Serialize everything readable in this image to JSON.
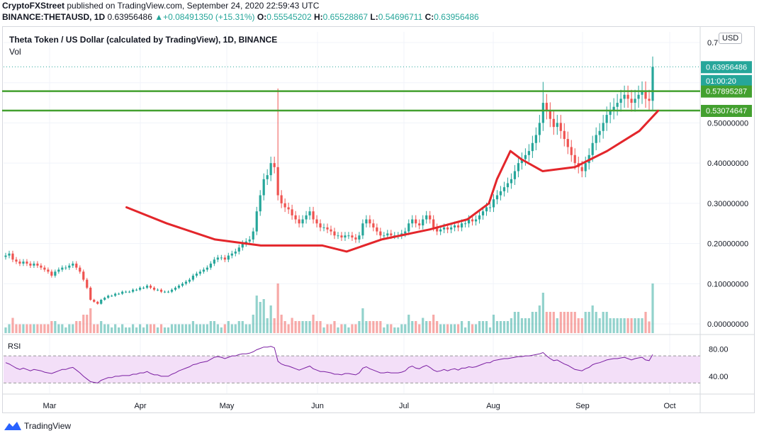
{
  "header": {
    "line1_brand": "CryptoFXStreet",
    "line1_rest": " published on TradingView.com, September 24, 2020 22:59:43 UTC",
    "symbol": "BINANCE:THETAUSD, 1D",
    "close_val": "0.63956486",
    "change": "+0.08491350 (+15.31%)",
    "o_label": "O:",
    "o_val": "0.55545202",
    "h_label": "H:",
    "h_val": "0.65528867",
    "l_label": "L:",
    "l_val": "0.54696711",
    "c_label": "C:",
    "c_val": "0.63956486"
  },
  "chart_title": "Theta Token / US Dollar (calculated by TradingView), 1D, BINANCE",
  "vol_label": "Vol",
  "rsi_label": "RSI",
  "currency_button": "USD",
  "branding": "TradingView",
  "colors": {
    "up": "#26a69a",
    "down": "#ef5350",
    "level": "#43a02f",
    "annotation": "#e3262b",
    "rsi": "#7b1fa2",
    "rsi_band": "#f3dff8"
  },
  "chart_data": {
    "type": "candlestick",
    "price_axis": {
      "ticks": [
        "0.00000000",
        "0.10000000",
        "0.20000000",
        "0.30000000",
        "0.40000000",
        "0.50000000"
      ],
      "partial_top": "0.7",
      "ylim": [
        0,
        0.7
      ]
    },
    "x_tick_labels": [
      "Mar",
      "Apr",
      "May",
      "Jun",
      "Jul",
      "Aug",
      "Sep",
      "Oct"
    ],
    "price_labels": [
      {
        "text": "0.63956486",
        "price": 0.63956486
      },
      {
        "text": "01:00:20",
        "price": 0.605
      },
      {
        "text": "0.57895287",
        "price": 0.57895287
      },
      {
        "text": "0.53074647",
        "price": 0.53074647
      }
    ],
    "horizontal_levels": [
      0.57895287,
      0.53074647
    ],
    "last_price": 0.63956486,
    "rsi": {
      "ticks": [
        "80.00",
        "40.00"
      ],
      "band": [
        30,
        70
      ],
      "ylim": [
        20,
        90
      ]
    },
    "closes": [
      0.17,
      0.175,
      0.16,
      0.155,
      0.15,
      0.155,
      0.15,
      0.145,
      0.15,
      0.145,
      0.14,
      0.135,
      0.13,
      0.12,
      0.13,
      0.135,
      0.14,
      0.14,
      0.145,
      0.15,
      0.14,
      0.13,
      0.11,
      0.09,
      0.06,
      0.055,
      0.05,
      0.06,
      0.065,
      0.07,
      0.07,
      0.075,
      0.075,
      0.08,
      0.08,
      0.08,
      0.085,
      0.085,
      0.09,
      0.09,
      0.095,
      0.09,
      0.085,
      0.085,
      0.08,
      0.08,
      0.08,
      0.085,
      0.09,
      0.095,
      0.1,
      0.105,
      0.11,
      0.12,
      0.125,
      0.13,
      0.135,
      0.14,
      0.15,
      0.16,
      0.165,
      0.165,
      0.16,
      0.17,
      0.175,
      0.18,
      0.19,
      0.2,
      0.205,
      0.21,
      0.23,
      0.28,
      0.32,
      0.36,
      0.37,
      0.4,
      0.39,
      0.32,
      0.3,
      0.29,
      0.285,
      0.27,
      0.26,
      0.25,
      0.26,
      0.27,
      0.28,
      0.26,
      0.25,
      0.24,
      0.24,
      0.235,
      0.23,
      0.22,
      0.22,
      0.215,
      0.22,
      0.22,
      0.215,
      0.21,
      0.22,
      0.25,
      0.26,
      0.25,
      0.24,
      0.23,
      0.22,
      0.22,
      0.225,
      0.22,
      0.22,
      0.22,
      0.225,
      0.23,
      0.25,
      0.26,
      0.25,
      0.245,
      0.26,
      0.27,
      0.26,
      0.24,
      0.23,
      0.235,
      0.24,
      0.235,
      0.24,
      0.245,
      0.24,
      0.25,
      0.25,
      0.26,
      0.255,
      0.26,
      0.27,
      0.28,
      0.29,
      0.29,
      0.31,
      0.32,
      0.33,
      0.34,
      0.35,
      0.36,
      0.38,
      0.4,
      0.41,
      0.42,
      0.43,
      0.45,
      0.47,
      0.5,
      0.55,
      0.53,
      0.51,
      0.49,
      0.5,
      0.48,
      0.46,
      0.44,
      0.42,
      0.4,
      0.39,
      0.38,
      0.4,
      0.42,
      0.45,
      0.47,
      0.48,
      0.5,
      0.52,
      0.53,
      0.54,
      0.55,
      0.56,
      0.57,
      0.56,
      0.55,
      0.56,
      0.57,
      0.58,
      0.56,
      0.555,
      0.63956486
    ],
    "rsi_values": [
      60,
      58,
      55,
      52,
      50,
      52,
      50,
      48,
      50,
      49,
      48,
      46,
      45,
      44,
      46,
      48,
      50,
      50,
      52,
      53,
      49,
      45,
      40,
      36,
      32,
      31,
      30,
      34,
      36,
      38,
      38,
      40,
      40,
      41,
      41,
      41,
      43,
      43,
      45,
      45,
      47,
      44,
      42,
      42,
      40,
      40,
      40,
      43,
      45,
      48,
      50,
      52,
      54,
      57,
      58,
      60,
      61,
      62,
      65,
      68,
      69,
      68,
      66,
      68,
      70,
      70,
      72,
      73,
      73,
      74,
      76,
      79,
      81,
      83,
      83,
      84,
      82,
      62,
      58,
      56,
      55,
      53,
      51,
      49,
      51,
      53,
      55,
      51,
      49,
      47,
      47,
      46,
      45,
      43,
      43,
      42,
      44,
      44,
      43,
      42,
      45,
      52,
      54,
      51,
      49,
      47,
      45,
      45,
      46,
      45,
      45,
      45,
      46,
      48,
      53,
      55,
      52,
      51,
      54,
      56,
      53,
      49,
      47,
      48,
      50,
      48,
      50,
      51,
      49,
      52,
      52,
      54,
      53,
      54,
      56,
      58,
      60,
      60,
      63,
      64,
      65,
      66,
      66,
      67,
      68,
      69,
      69,
      70,
      70,
      71,
      72,
      73,
      75,
      70,
      66,
      63,
      64,
      61,
      58,
      56,
      53,
      50,
      49,
      48,
      51,
      53,
      57,
      59,
      60,
      62,
      64,
      65,
      66,
      66,
      67,
      68,
      66,
      64,
      66,
      67,
      68,
      64,
      63,
      72
    ]
  }
}
